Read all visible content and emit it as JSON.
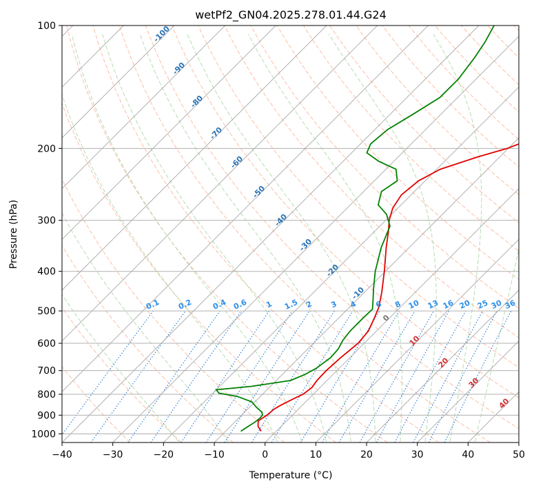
{
  "chart_data": {
    "type": "line",
    "title": "wetPf2_GN04.2025.278.01.44.G24",
    "xlabel": "Temperature (°C)",
    "ylabel": "Pressure (hPa)",
    "xlim": [
      -40,
      50
    ],
    "ylim": [
      1050,
      100
    ],
    "y_scale": "log",
    "grid": true,
    "x_ticks": [
      -40,
      -30,
      -20,
      -10,
      0,
      10,
      20,
      30,
      40,
      50
    ],
    "y_ticks": [
      100,
      200,
      300,
      400,
      500,
      600,
      700,
      800,
      900,
      1000
    ],
    "series": [
      {
        "name": "",
        "color": "#e00000",
        "points": [
          {
            "p": 985,
            "t": -3.0
          },
          {
            "p": 960,
            "t": -4.5
          },
          {
            "p": 930,
            "t": -5.6
          },
          {
            "p": 900,
            "t": -5.0
          },
          {
            "p": 870,
            "t": -4.8
          },
          {
            "p": 850,
            "t": -4.2
          },
          {
            "p": 820,
            "t": -3.0
          },
          {
            "p": 800,
            "t": -2.0
          },
          {
            "p": 770,
            "t": -1.6
          },
          {
            "p": 740,
            "t": -2.0
          },
          {
            "p": 700,
            "t": -2.1
          },
          {
            "p": 650,
            "t": -1.8
          },
          {
            "p": 600,
            "t": -1.2
          },
          {
            "p": 560,
            "t": -1.6
          },
          {
            "p": 520,
            "t": -3.0
          },
          {
            "p": 490,
            "t": -4.2
          },
          {
            "p": 450,
            "t": -6.6
          },
          {
            "p": 400,
            "t": -10.2
          },
          {
            "p": 350,
            "t": -14.5
          },
          {
            "p": 320,
            "t": -17.2
          },
          {
            "p": 300,
            "t": -19.3
          },
          {
            "p": 280,
            "t": -21.0
          },
          {
            "p": 260,
            "t": -21.9
          },
          {
            "p": 240,
            "t": -21.3
          },
          {
            "p": 225,
            "t": -19.3
          },
          {
            "p": 210,
            "t": -14.4
          },
          {
            "p": 200,
            "t": -10.2
          },
          {
            "p": 185,
            "t": -5.8
          },
          {
            "p": 170,
            "t": -2.0
          },
          {
            "p": 155,
            "t": 0.7
          },
          {
            "p": 140,
            "t": 2.0
          },
          {
            "p": 125,
            "t": 2.6
          },
          {
            "p": 112,
            "t": 3.2
          },
          {
            "p": 100,
            "t": 4.0
          }
        ]
      },
      {
        "name": "",
        "color": "#008000",
        "points": [
          {
            "p": 985,
            "t": -7.0
          },
          {
            "p": 960,
            "t": -6.5
          },
          {
            "p": 935,
            "t": -6.0
          },
          {
            "p": 915,
            "t": -5.8
          },
          {
            "p": 900,
            "t": -5.9
          },
          {
            "p": 885,
            "t": -6.6
          },
          {
            "p": 860,
            "t": -8.7
          },
          {
            "p": 835,
            "t": -10.6
          },
          {
            "p": 810,
            "t": -14.5
          },
          {
            "p": 795,
            "t": -18.8
          },
          {
            "p": 780,
            "t": -20.0
          },
          {
            "p": 765,
            "t": -13.7
          },
          {
            "p": 740,
            "t": -7.2
          },
          {
            "p": 715,
            "t": -5.5
          },
          {
            "p": 690,
            "t": -4.5
          },
          {
            "p": 650,
            "t": -3.8
          },
          {
            "p": 620,
            "t": -4.0
          },
          {
            "p": 590,
            "t": -4.8
          },
          {
            "p": 560,
            "t": -5.2
          },
          {
            "p": 520,
            "t": -5.2
          },
          {
            "p": 495,
            "t": -5.1
          },
          {
            "p": 470,
            "t": -6.8
          },
          {
            "p": 440,
            "t": -9.0
          },
          {
            "p": 400,
            "t": -12.0
          },
          {
            "p": 350,
            "t": -15.5
          },
          {
            "p": 310,
            "t": -18.0
          },
          {
            "p": 290,
            "t": -21.0
          },
          {
            "p": 275,
            "t": -24.5
          },
          {
            "p": 255,
            "t": -26.5
          },
          {
            "p": 240,
            "t": -25.5
          },
          {
            "p": 225,
            "t": -28.0
          },
          {
            "p": 215,
            "t": -33.0
          },
          {
            "p": 205,
            "t": -37.0
          },
          {
            "p": 195,
            "t": -38.0
          },
          {
            "p": 180,
            "t": -37.5
          },
          {
            "p": 165,
            "t": -35.5
          },
          {
            "p": 150,
            "t": -33.5
          },
          {
            "p": 135,
            "t": -33.5
          },
          {
            "p": 120,
            "t": -34.5
          },
          {
            "p": 110,
            "t": -35.5
          },
          {
            "p": 100,
            "t": -37.0
          }
        ]
      }
    ],
    "isotherm_labels": [
      "-100",
      "-90",
      "-80",
      "-70",
      "-60",
      "-50",
      "-40",
      "-30",
      "-20",
      "-10"
    ],
    "mixing_ratio_labels": [
      "0.1",
      "0.2",
      "0.4",
      "0.6",
      "1",
      "1.5",
      "2",
      "3",
      "4",
      "6",
      "8",
      "10",
      "13",
      "16",
      "20",
      "25",
      "30",
      "36"
    ],
    "moist_adiabat_labels": [
      "0",
      "10",
      "20",
      "30",
      "40"
    ]
  }
}
